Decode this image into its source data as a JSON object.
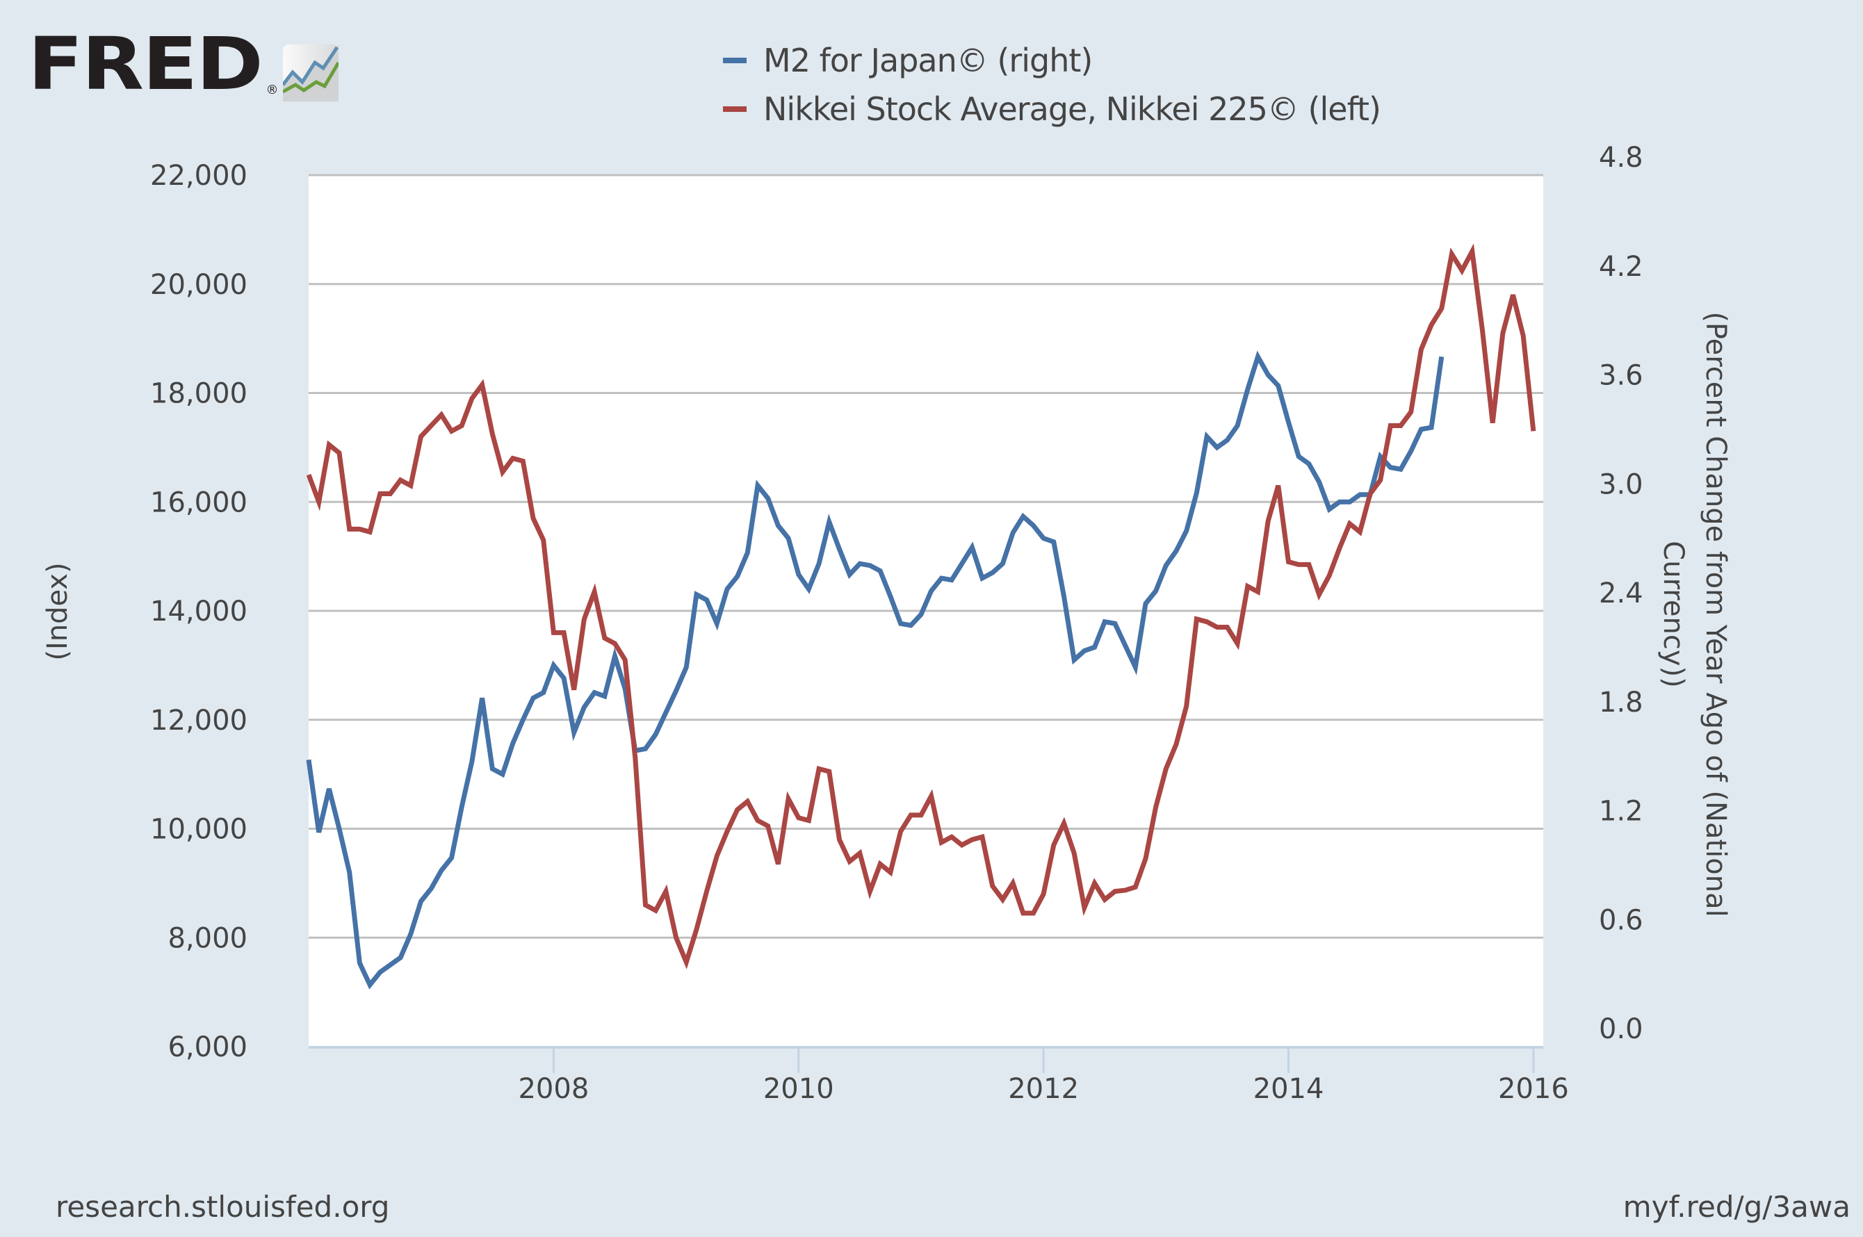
{
  "brand": {
    "logo_text": "FRED",
    "logo_mark": "®",
    "icon": "fred-chart-icon"
  },
  "legend": [
    {
      "label": "M2 for Japan© (right)",
      "color": "#4572a7"
    },
    {
      "label": "Nikkei Stock Average, Nikkei 225© (left)",
      "color": "#aa4643"
    }
  ],
  "footer": {
    "source": "research.stlouisfed.org",
    "short_link": "myf.red/g/3awa"
  },
  "chart_data": {
    "type": "line",
    "title": "",
    "xlabel": "",
    "ylabel_left": "(Index)",
    "ylabel_right_lines": [
      "(Percent Change from Year Ago of (National",
      "Currency))"
    ],
    "x_start": "2006-01",
    "x_range": [
      2006.0,
      2016.08
    ],
    "x_ticks": [
      "2008",
      "2010",
      "2012",
      "2014",
      "2016"
    ],
    "ylim_left": [
      6000,
      22000
    ],
    "yticks_left": [
      "6,000",
      "8,000",
      "10,000",
      "12,000",
      "14,000",
      "16,000",
      "18,000",
      "20,000",
      "22,000"
    ],
    "ylim_right": [
      0.0,
      4.8
    ],
    "yticks_right": [
      "0.0",
      "0.6",
      "1.2",
      "1.8",
      "2.4",
      "3.0",
      "3.6",
      "4.2",
      "4.8"
    ],
    "grid": true,
    "legend_position": "top-center",
    "series": [
      {
        "name": "M2 for Japan© (right)",
        "axis": "right",
        "color": "#4572a7",
        "frequency": "monthly",
        "values": [
          1.58,
          1.18,
          1.42,
          1.2,
          0.96,
          0.46,
          0.34,
          0.41,
          0.45,
          0.49,
          0.62,
          0.8,
          0.87,
          0.97,
          1.04,
          1.32,
          1.57,
          1.92,
          1.53,
          1.5,
          1.67,
          1.8,
          1.92,
          1.95,
          2.1,
          2.03,
          1.73,
          1.87,
          1.95,
          1.93,
          2.15,
          1.97,
          1.63,
          1.64,
          1.72,
          1.84,
          1.96,
          2.09,
          2.49,
          2.46,
          2.33,
          2.52,
          2.59,
          2.72,
          3.09,
          3.02,
          2.87,
          2.8,
          2.6,
          2.52,
          2.66,
          2.89,
          2.74,
          2.6,
          2.66,
          2.65,
          2.62,
          2.48,
          2.33,
          2.32,
          2.38,
          2.51,
          2.58,
          2.57,
          2.66,
          2.75,
          2.58,
          2.61,
          2.66,
          2.83,
          2.92,
          2.87,
          2.8,
          2.78,
          2.48,
          2.13,
          2.18,
          2.2,
          2.34,
          2.33,
          2.21,
          2.09,
          2.44,
          2.51,
          2.65,
          2.73,
          2.84,
          3.05,
          3.36,
          3.3,
          3.34,
          3.42,
          3.62,
          3.8,
          3.7,
          3.64,
          3.44,
          3.25,
          3.21,
          3.11,
          2.96,
          3.0,
          3.0,
          3.04,
          3.04,
          3.25,
          3.19,
          3.18,
          3.28,
          3.4,
          3.41,
          3.8
        ]
      },
      {
        "name": "Nikkei Stock Average, Nikkei 225© (left)",
        "axis": "left",
        "color": "#aa4643",
        "frequency": "monthly",
        "values": [
          16500,
          16000,
          17050,
          16900,
          15500,
          15500,
          15450,
          16150,
          16150,
          16400,
          16300,
          17200,
          17400,
          17600,
          17300,
          17400,
          17900,
          18150,
          17250,
          16550,
          16800,
          16750,
          15700,
          15300,
          13600,
          13600,
          12550,
          13850,
          14350,
          13500,
          13400,
          13100,
          11300,
          8600,
          8500,
          8850,
          8000,
          7550,
          8150,
          8850,
          9500,
          9950,
          10350,
          10500,
          10150,
          10050,
          9350,
          10550,
          10200,
          10150,
          11100,
          11050,
          9800,
          9400,
          9550,
          8850,
          9350,
          9200,
          9950,
          10250,
          10250,
          10600,
          9750,
          9850,
          9700,
          9800,
          9850,
          8950,
          8700,
          9000,
          8450,
          8450,
          8800,
          9700,
          10100,
          9550,
          8550,
          9000,
          8700,
          8850,
          8870,
          8930,
          9450,
          10400,
          11100,
          11550,
          12250,
          13850,
          13800,
          13700,
          13700,
          13400,
          14450,
          14350,
          15650,
          16300,
          14900,
          14850,
          14850,
          14300,
          14650,
          15150,
          15600,
          15450,
          16150,
          16400,
          17400,
          17400,
          17650,
          18800,
          19250,
          19550,
          20550,
          20250,
          20600,
          19150,
          17450,
          19100,
          19800,
          19050,
          17300
        ]
      }
    ]
  }
}
